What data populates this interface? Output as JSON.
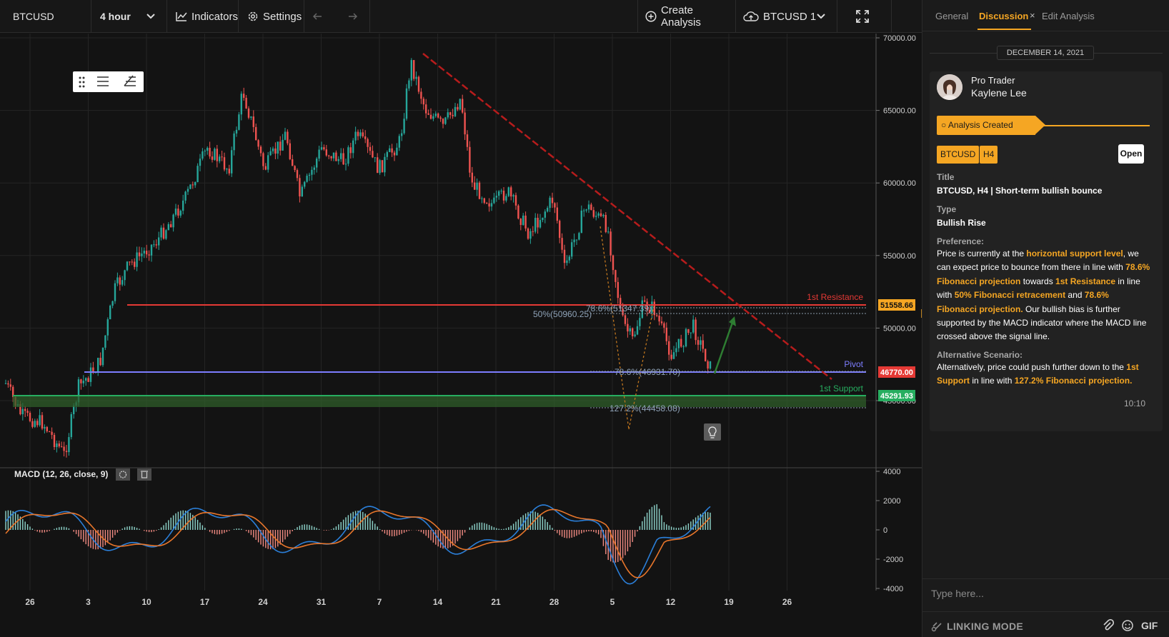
{
  "toolbar": {
    "symbol": "BTCUSD",
    "timeframe": "4 hour",
    "indicators_label": "Indicators",
    "settings_label": "Settings",
    "create_analysis_label": "Create Analysis",
    "layout_label": "BTCUSD 1"
  },
  "chart": {
    "y_ticks": [
      "70000.00",
      "65000.00",
      "60000.00",
      "55000.00",
      "50000.00",
      "45000.00"
    ],
    "x_ticks": [
      "26",
      "3",
      "10",
      "17",
      "24",
      "31",
      "7",
      "14",
      "21",
      "28",
      "5",
      "12",
      "19",
      "26"
    ],
    "levels": {
      "resistance": {
        "label": "1st Resistance",
        "price": "51558.66",
        "color": "#e74c3c"
      },
      "pivot": {
        "label": "Pivot",
        "price": "46770.00",
        "color": "#7d7dff"
      },
      "support": {
        "label": "1st Support",
        "price": "45291.93",
        "color": "#27ae60"
      }
    },
    "fib_labels": [
      "78.6%(51347.39)",
      "50%(50960.25)",
      "78.6%(46931.70)",
      "127.2%(44458.08)"
    ],
    "macd": {
      "label": "MACD (12, 26, close, 9)",
      "y_ticks": [
        "4000",
        "2000",
        "0",
        "-2000",
        "-4000"
      ]
    }
  },
  "panel": {
    "tabs": [
      "General",
      "Discussion",
      "Edit Analysis"
    ],
    "date": "DECEMBER 14, 2021",
    "author_role": "Pro Trader",
    "author_name": "Kaylene Lee",
    "status": "Analysis Created",
    "tags": [
      "BTCUSD",
      "H4"
    ],
    "open_label": "Open",
    "title_label": "Title",
    "title_value": "BTCUSD, H4 | Short-term bullish bounce",
    "type_label": "Type",
    "type_value": "Bullish Rise",
    "preference_label": "Preference:",
    "preference": {
      "p1": "Price is currently at the ",
      "h1": "horizontal support level",
      "p2": ", we can expect price to bounce from there in line with ",
      "h2": "78.6% Fibonacci projection",
      "p3": " towards ",
      "h3": "1st Resistance",
      "p4": " in line with ",
      "h4": "50% Fibonacci retracement",
      "p5": " and ",
      "h5": "78.6% Fibonacci projection.",
      "p6": " Our bullish bias is further supported by the MACD indicator where the MACD line crossed above the signal line."
    },
    "alternative_label": "Alternative Scenario:",
    "alternative": {
      "p1": "Alternatively, price could push further down to the ",
      "h1": "1st Support",
      "p2": " in line with ",
      "h2": "127.2% Fibonacci projection."
    },
    "time": "10:10",
    "composer_placeholder": "Type here...",
    "linking_mode": "LINKING MODE",
    "gif_label": "GIF"
  },
  "colors": {
    "accent": "#f5a623",
    "up": "#26a69a",
    "down": "#ef5350"
  }
}
